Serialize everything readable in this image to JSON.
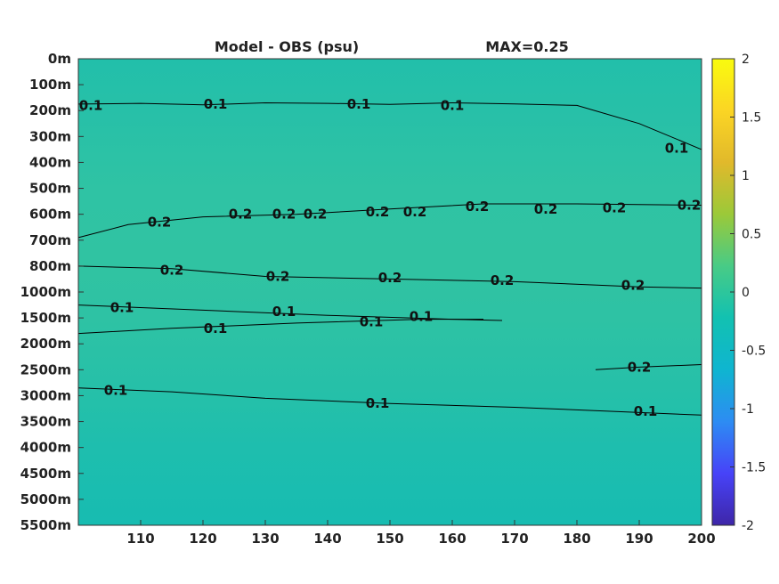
{
  "chart_data": {
    "type": "heatmap",
    "title_left": "Model - OBS (psu)",
    "title_right": "MAX=0.25",
    "x_ticks": [
      110,
      120,
      130,
      140,
      150,
      160,
      170,
      180,
      190,
      200
    ],
    "xlim": [
      100,
      200
    ],
    "depth_ticks": [
      "0m",
      "100m",
      "200m",
      "300m",
      "400m",
      "500m",
      "600m",
      "700m",
      "800m",
      "1000m",
      "1500m",
      "2000m",
      "2500m",
      "3000m",
      "3500m",
      "4000m",
      "4500m",
      "5000m",
      "5500m"
    ],
    "colorbar": {
      "range": [
        -2,
        2
      ],
      "ticks": [
        "2",
        "1.5",
        "1",
        "0.5",
        "0",
        "-0.5",
        "-1",
        "-1.5",
        "-2"
      ],
      "colormap": [
        "#3e26a8",
        "#4743f8",
        "#2d8cf3",
        "#0fb5d0",
        "#12c1b1",
        "#48cb86",
        "#9bc939",
        "#e1b92b",
        "#fbd524",
        "#f9fb0e"
      ]
    },
    "bands": [
      {
        "depth_index": 0,
        "color": "#22bfaa"
      },
      {
        "depth_index": 2,
        "color": "#27c0a8"
      },
      {
        "depth_index": 5,
        "color": "#2fc3a4"
      },
      {
        "depth_index": 8,
        "color": "#30c3a2"
      },
      {
        "depth_index": 10,
        "color": "#2ec2a4"
      },
      {
        "depth_index": 13,
        "color": "#25c0a9"
      },
      {
        "depth_index": 15,
        "color": "#1ebeae"
      },
      {
        "depth_index": 18,
        "color": "#17bcb1"
      }
    ],
    "contours": [
      {
        "level": 0.1,
        "points": [
          [
            100,
            1.75
          ],
          [
            110,
            1.72
          ],
          [
            120,
            1.78
          ],
          [
            130,
            1.7
          ],
          [
            140,
            1.72
          ],
          [
            150,
            1.76
          ],
          [
            160,
            1.7
          ],
          [
            170,
            1.74
          ],
          [
            180,
            1.8
          ],
          [
            190,
            2.5
          ],
          [
            200,
            3.5
          ]
        ],
        "labels": [
          [
            102,
            1.8
          ],
          [
            122,
            1.75
          ],
          [
            145,
            1.75
          ],
          [
            160,
            1.8
          ],
          [
            196,
            3.45
          ]
        ]
      },
      {
        "level": 0.2,
        "points": [
          [
            100,
            6.9
          ],
          [
            108,
            6.4
          ],
          [
            120,
            6.1
          ],
          [
            135,
            6.0
          ],
          [
            150,
            5.8
          ],
          [
            165,
            5.6
          ],
          [
            180,
            5.6
          ],
          [
            200,
            5.65
          ]
        ],
        "labels": [
          [
            113,
            6.3
          ],
          [
            126,
            6.0
          ],
          [
            133,
            6.0
          ],
          [
            138,
            6.0
          ],
          [
            148,
            5.9
          ],
          [
            154,
            5.9
          ],
          [
            164,
            5.7
          ],
          [
            175,
            5.8
          ],
          [
            186,
            5.75
          ],
          [
            198,
            5.65
          ]
        ]
      },
      {
        "level": 0.2,
        "points": [
          [
            100,
            8.0
          ],
          [
            115,
            8.1
          ],
          [
            130,
            8.4
          ],
          [
            150,
            8.5
          ],
          [
            170,
            8.6
          ],
          [
            190,
            8.8
          ],
          [
            200,
            8.85
          ]
        ],
        "labels": [
          [
            115,
            8.15
          ],
          [
            132,
            8.4
          ],
          [
            150,
            8.45
          ],
          [
            168,
            8.55
          ],
          [
            189,
            8.75
          ]
        ]
      },
      {
        "level": 0.1,
        "points": [
          [
            100,
            9.5
          ],
          [
            120,
            9.7
          ],
          [
            140,
            9.9
          ],
          [
            160,
            10.05
          ],
          [
            168,
            10.1
          ]
        ],
        "labels": [
          [
            107,
            9.6
          ],
          [
            133,
            9.75
          ],
          [
            155,
            9.95
          ]
        ]
      },
      {
        "level": 0.1,
        "points": [
          [
            100,
            10.6
          ],
          [
            115,
            10.4
          ],
          [
            135,
            10.2
          ],
          [
            155,
            10.05
          ],
          [
            165,
            10.05
          ]
        ],
        "labels": [
          [
            122,
            10.4
          ],
          [
            147,
            10.15
          ]
        ]
      },
      {
        "level": 0.2,
        "points": [
          [
            183,
            12.0
          ],
          [
            190,
            11.9
          ],
          [
            200,
            11.8
          ]
        ],
        "labels": [
          [
            190,
            11.9
          ]
        ]
      },
      {
        "level": 0.1,
        "points": [
          [
            100,
            12.7
          ],
          [
            115,
            12.85
          ],
          [
            130,
            13.1
          ],
          [
            150,
            13.3
          ],
          [
            170,
            13.45
          ],
          [
            185,
            13.6
          ],
          [
            200,
            13.75
          ]
        ],
        "labels": [
          [
            106,
            12.8
          ],
          [
            148,
            13.3
          ],
          [
            191,
            13.6
          ]
        ]
      }
    ],
    "label_texts": [
      "0.1",
      "0.2"
    ]
  }
}
